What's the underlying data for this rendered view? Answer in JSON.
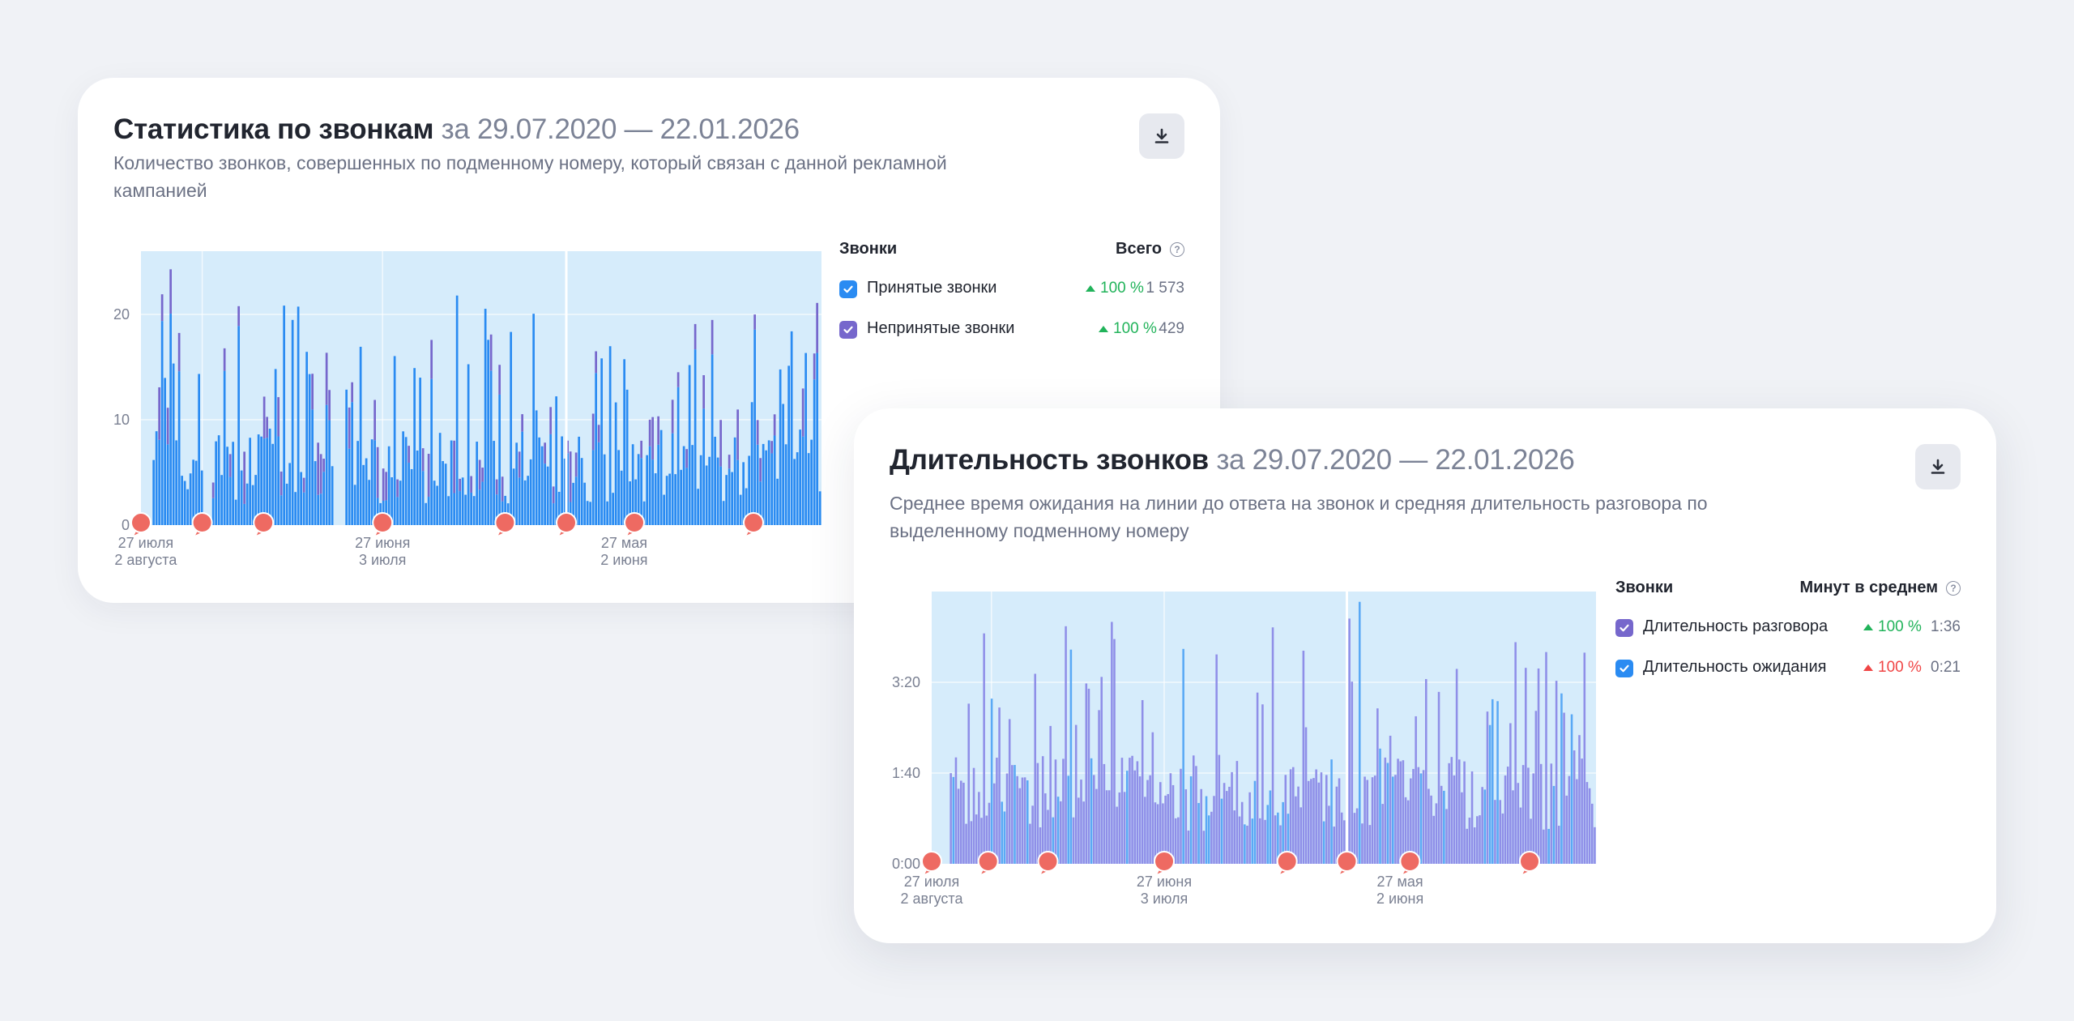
{
  "colors": {
    "accepted": "#2a8bf2",
    "missed": "#7667cc",
    "talk": "#8f8fe8",
    "wait": "#5aa9f5",
    "plot_bg": "#d6ecfb",
    "marker": "#ee6a62",
    "up_green": "#21b35a",
    "up_red": "#f04545"
  },
  "calls_card": {
    "title": "Статистика по звонкам",
    "period": "за 29.07.2020 — 22.01.2026",
    "subtitle": "Количество звонков, совершенных по подменному номеру, который связан с данной рекламной кампанией",
    "download_icon": "download-icon",
    "legend": {
      "header_left": "Звонки",
      "header_right": "Всего",
      "items": [
        {
          "label": "Принятые звонки",
          "delta": "100 %",
          "value": "1 573",
          "color": "#2a8bf2",
          "trend": "up"
        },
        {
          "label": "Непринятые звонки",
          "delta": "100 %",
          "value": "429",
          "color": "#7667cc",
          "trend": "up"
        }
      ]
    }
  },
  "duration_card": {
    "title": "Длительность звонков",
    "period": "за 29.07.2020 — 22.01.2026",
    "subtitle": "Среднее время ожидания на линии до ответа на звонок и средняя длительность разговора по выделенному подменному номеру",
    "download_icon": "download-icon",
    "legend": {
      "header_left": "Звонки",
      "header_right": "Минут в среднем",
      "items": [
        {
          "label": "Длительность разговора",
          "delta": "100 %",
          "value": "1:36",
          "color": "#7667cc",
          "trend": "up",
          "delta_color": "#21b35a"
        },
        {
          "label": "Длительность ожидания",
          "delta": "100 %",
          "value": "0:21",
          "color": "#2a8bf2",
          "trend": "up",
          "delta_color": "#f04545"
        }
      ]
    }
  },
  "chart_data": [
    {
      "type": "bar",
      "title": "Статистика по звонкам",
      "stacked": true,
      "y_ticks": [
        "0",
        "10",
        "20"
      ],
      "ylim": [
        0,
        26
      ],
      "x_tick_labels": [
        {
          "top": "27 июля",
          "bottom": "2 августа"
        },
        {
          "top": "27 июня",
          "bottom": "3 июля"
        },
        {
          "top": "27 мая",
          "bottom": "2 июня"
        }
      ],
      "series": [
        {
          "name": "Принятые звонки",
          "color": "#2a8bf2"
        },
        {
          "name": "Непринятые звонки",
          "color": "#7667cc"
        }
      ],
      "notes": "dense daily stacked bars, mostly 3–12 calls/day with peaks up to ~25",
      "grid": true
    },
    {
      "type": "bar",
      "title": "Длительность звонков",
      "y_ticks": [
        "0:00",
        "1:40",
        "3:20"
      ],
      "ylim": [
        0,
        300
      ],
      "x_tick_labels": [
        {
          "top": "27 июля",
          "bottom": "2 августа"
        },
        {
          "top": "27 июня",
          "bottom": "3 июля"
        },
        {
          "top": "27 мая",
          "bottom": "2 июня"
        }
      ],
      "series": [
        {
          "name": "Длительность разговора",
          "color": "#8f8fe8"
        },
        {
          "name": "Длительность ожидания",
          "color": "#5aa9f5"
        }
      ],
      "notes": "dense daily bars in seconds, mostly 40–170 s with peaks up to ~290 s",
      "grid": true
    }
  ]
}
